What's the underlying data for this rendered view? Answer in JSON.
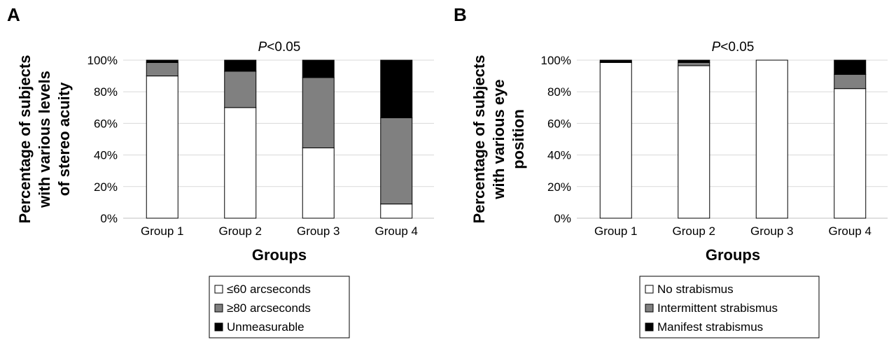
{
  "chart_data": [
    {
      "panel": "A",
      "type": "bar",
      "stacked": true,
      "title": "P<0.05",
      "title_italic_prefix": "P",
      "title_rest": "<0.05",
      "xlabel": "Groups",
      "ylabel_lines": [
        "Percentage of subjects",
        "with various levels",
        "of stereo acuity"
      ],
      "ylim": [
        0,
        100
      ],
      "yticks": [
        "0%",
        "20%",
        "40%",
        "60%",
        "80%",
        "100%"
      ],
      "categories": [
        "Group 1",
        "Group 2",
        "Group 3",
        "Group 4"
      ],
      "series": [
        {
          "name": "≤60 arcseconds",
          "color": "#ffffff",
          "values": [
            90,
            70,
            44.5,
            9
          ]
        },
        {
          "name": "≥80 arcseconds",
          "color": "#808080",
          "values": [
            8.5,
            23,
            44.5,
            54.5
          ]
        },
        {
          "name": "Unmeasurable",
          "color": "#000000",
          "values": [
            1.5,
            7,
            11,
            36.5
          ]
        }
      ],
      "grid": true,
      "legend_position": "bottom"
    },
    {
      "panel": "B",
      "type": "bar",
      "stacked": true,
      "title": "P<0.05",
      "title_italic_prefix": "P",
      "title_rest": "<0.05",
      "xlabel": "Groups",
      "ylabel_lines": [
        "Percentage of subjects",
        "with various eye",
        "position"
      ],
      "ylim": [
        0,
        100
      ],
      "yticks": [
        "0%",
        "20%",
        "40%",
        "60%",
        "80%",
        "100%"
      ],
      "categories": [
        "Group 1",
        "Group 2",
        "Group 3",
        "Group 4"
      ],
      "series": [
        {
          "name": "No strabismus",
          "color": "#ffffff",
          "values": [
            98.5,
            96.5,
            100,
            82
          ]
        },
        {
          "name": "Intermittent strabismus",
          "color": "#808080",
          "values": [
            0.5,
            2,
            0,
            9
          ]
        },
        {
          "name": "Manifest strabismus",
          "color": "#000000",
          "values": [
            1,
            1.5,
            0,
            9
          ]
        }
      ],
      "grid": true,
      "legend_position": "bottom"
    }
  ]
}
